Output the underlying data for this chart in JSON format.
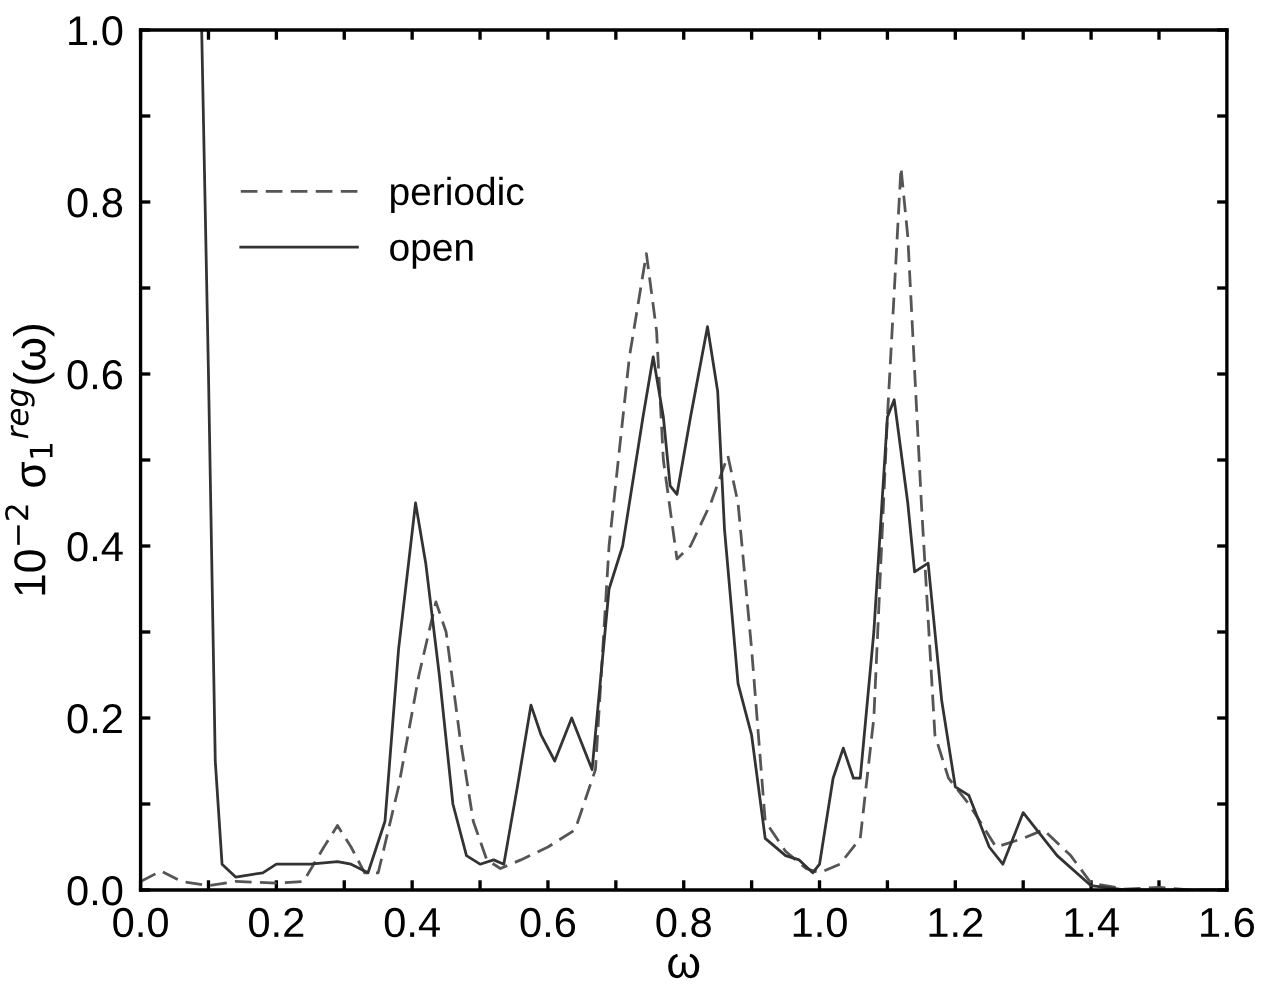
{
  "chart_data": {
    "type": "line",
    "xlabel": "ω",
    "ylabel": "10$^{−2}$ σ$_{1}$$^{reg}$(ω)",
    "xlim": [
      0,
      1.6
    ],
    "ylim": [
      0,
      1.0
    ],
    "xticks": [
      {
        "value": 0,
        "label": "0.0"
      },
      {
        "value": 0.1,
        "label": null
      },
      0.2,
      {
        "value": 0.3,
        "label": null
      },
      0.4,
      {
        "value": 0.5,
        "label": null
      },
      0.6,
      {
        "value": 0.7,
        "label": null
      },
      0.8,
      {
        "value": 0.9,
        "label": null
      },
      {
        "value": 1,
        "label": "1.0"
      },
      {
        "value": 1.1,
        "label": null
      },
      1.2,
      {
        "value": 1.3,
        "label": null
      },
      1.4,
      {
        "value": 1.5,
        "label": null
      },
      1.6
    ],
    "yticks": [
      {
        "value": 0,
        "label": "0.0"
      },
      {
        "value": 0.1,
        "label": null
      },
      0.2,
      {
        "value": 0.3,
        "label": null
      },
      0.4,
      {
        "value": 0.5,
        "label": null
      },
      0.6,
      {
        "value": 0.7,
        "label": null
      },
      0.8,
      {
        "value": 0.9,
        "label": null
      },
      {
        "value": 1,
        "label": "1.0"
      }
    ],
    "legend": "top left",
    "marker": "none",
    "series": [
      {
        "name": "periodic",
        "color": "#555555",
        "line_style": "dashed",
        "x": [
          0,
          0.03,
          0.06,
          0.1,
          0.14,
          0.2,
          0.24,
          0.27,
          0.29,
          0.31,
          0.33,
          0.35,
          0.38,
          0.41,
          0.435,
          0.45,
          0.47,
          0.49,
          0.51,
          0.53,
          0.56,
          0.6,
          0.64,
          0.67,
          0.69,
          0.72,
          0.745,
          0.76,
          0.77,
          0.79,
          0.81,
          0.84,
          0.865,
          0.88,
          0.9,
          0.92,
          0.95,
          0.98,
          1.0,
          1.03,
          1.06,
          1.08,
          1.1,
          1.12,
          1.13,
          1.15,
          1.17,
          1.19,
          1.22,
          1.26,
          1.3,
          1.33,
          1.37,
          1.4,
          1.45,
          1.5,
          1.55,
          1.6
        ],
        "values": [
          0.01,
          0.022,
          0.01,
          0.005,
          0.01,
          0.008,
          0.01,
          0.05,
          0.075,
          0.05,
          0.02,
          0.02,
          0.12,
          0.25,
          0.335,
          0.3,
          0.18,
          0.08,
          0.035,
          0.025,
          0.035,
          0.05,
          0.07,
          0.14,
          0.4,
          0.62,
          0.74,
          0.65,
          0.5,
          0.385,
          0.4,
          0.45,
          0.505,
          0.45,
          0.28,
          0.08,
          0.045,
          0.025,
          0.02,
          0.03,
          0.06,
          0.2,
          0.55,
          0.84,
          0.76,
          0.45,
          0.18,
          0.13,
          0.1,
          0.05,
          0.06,
          0.07,
          0.04,
          0.008,
          0.001,
          0.003,
          0.0,
          0.0
        ]
      },
      {
        "name": "open",
        "color": "#333333",
        "line_style": "solid",
        "x": [
          0.09,
          0.1,
          0.11,
          0.12,
          0.14,
          0.18,
          0.2,
          0.25,
          0.29,
          0.31,
          0.335,
          0.36,
          0.38,
          0.405,
          0.42,
          0.44,
          0.46,
          0.48,
          0.5,
          0.52,
          0.535,
          0.555,
          0.575,
          0.59,
          0.61,
          0.635,
          0.65,
          0.665,
          0.69,
          0.71,
          0.74,
          0.755,
          0.77,
          0.78,
          0.79,
          0.81,
          0.835,
          0.85,
          0.86,
          0.88,
          0.9,
          0.92,
          0.95,
          0.97,
          0.99,
          1.0,
          1.02,
          1.035,
          1.05,
          1.06,
          1.08,
          1.1,
          1.11,
          1.13,
          1.14,
          1.16,
          1.18,
          1.2,
          1.22,
          1.25,
          1.27,
          1.3,
          1.32,
          1.35,
          1.4,
          1.45,
          1.6
        ],
        "values": [
          1.0,
          0.6,
          0.15,
          0.03,
          0.015,
          0.02,
          0.03,
          0.03,
          0.033,
          0.03,
          0.02,
          0.08,
          0.28,
          0.45,
          0.38,
          0.25,
          0.1,
          0.04,
          0.03,
          0.035,
          0.03,
          0.12,
          0.215,
          0.18,
          0.15,
          0.2,
          0.17,
          0.14,
          0.35,
          0.4,
          0.55,
          0.62,
          0.55,
          0.47,
          0.46,
          0.55,
          0.655,
          0.58,
          0.42,
          0.24,
          0.18,
          0.06,
          0.04,
          0.035,
          0.02,
          0.03,
          0.13,
          0.165,
          0.13,
          0.13,
          0.3,
          0.55,
          0.57,
          0.45,
          0.37,
          0.38,
          0.22,
          0.12,
          0.11,
          0.05,
          0.03,
          0.09,
          0.07,
          0.04,
          0.005,
          0.0,
          0.0
        ]
      }
    ]
  }
}
